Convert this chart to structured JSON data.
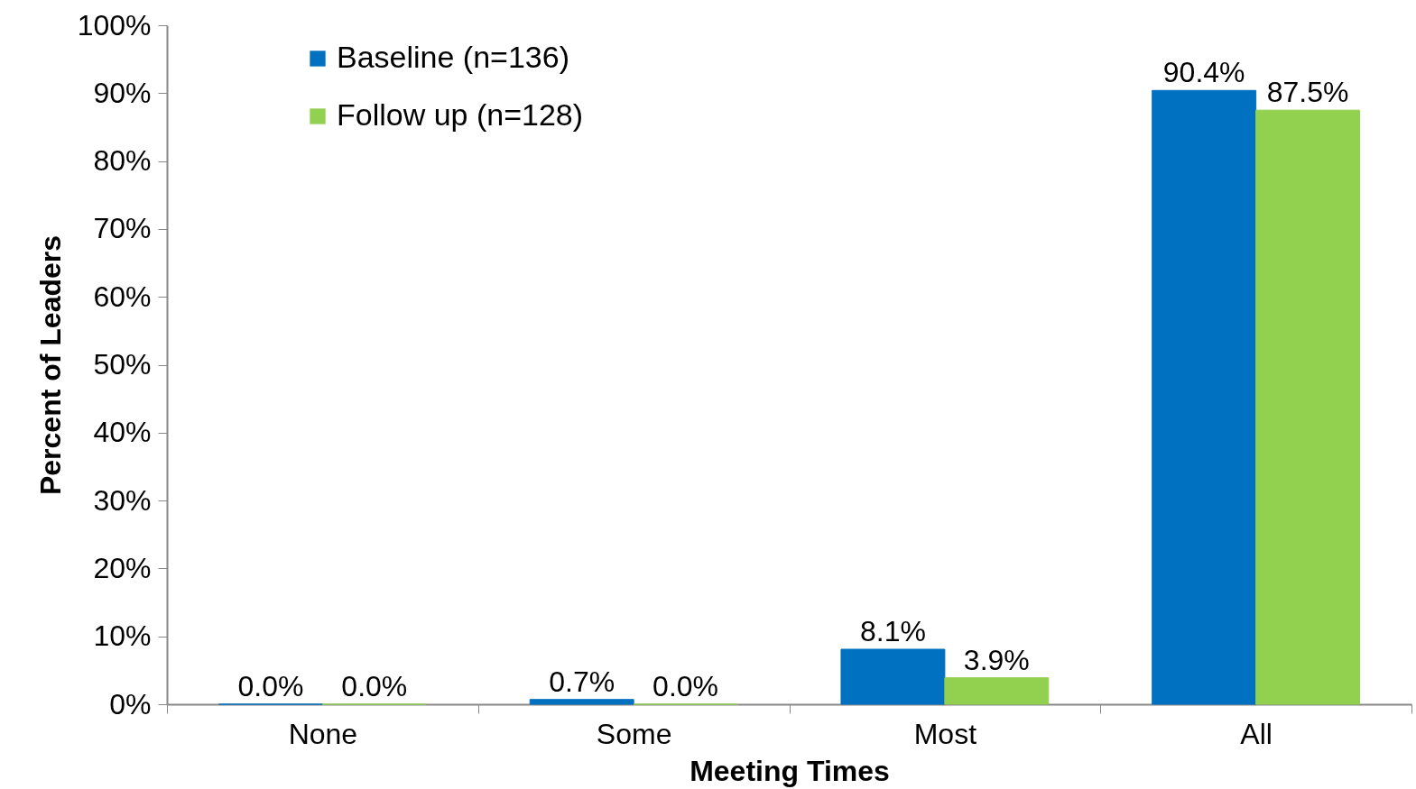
{
  "chart_data": {
    "type": "bar",
    "xlabel": "Meeting Times",
    "ylabel": "Percent of Leaders",
    "categories": [
      "None",
      "Some",
      "Most",
      "All"
    ],
    "series": [
      {
        "name": "Baseline (n=136)",
        "color": "#0070c0",
        "values": [
          0,
          0.7,
          8.1,
          90.4
        ],
        "value_labels": [
          "0.0%",
          "0.7%",
          "8.1%",
          "90.4%"
        ]
      },
      {
        "name": "Follow up (n=128)",
        "color": "#92d050",
        "values": [
          0,
          0,
          3.9,
          87.5
        ],
        "value_labels": [
          "0.0%",
          "0.0%",
          "3.9%",
          "87.5%"
        ]
      }
    ],
    "ylim": [
      0,
      100
    ],
    "yticks": [
      {
        "value": 0,
        "label": "0%"
      },
      {
        "value": 10,
        "label": "10%"
      },
      {
        "value": 20,
        "label": "20%"
      },
      {
        "value": 30,
        "label": "30%"
      },
      {
        "value": 40,
        "label": "40%"
      },
      {
        "value": 50,
        "label": "50%"
      },
      {
        "value": 60,
        "label": "60%"
      },
      {
        "value": 70,
        "label": "70%"
      },
      {
        "value": 80,
        "label": "80%"
      },
      {
        "value": 90,
        "label": "90%"
      },
      {
        "value": 100,
        "label": "100%"
      }
    ],
    "grid": false,
    "legend": "top left"
  }
}
